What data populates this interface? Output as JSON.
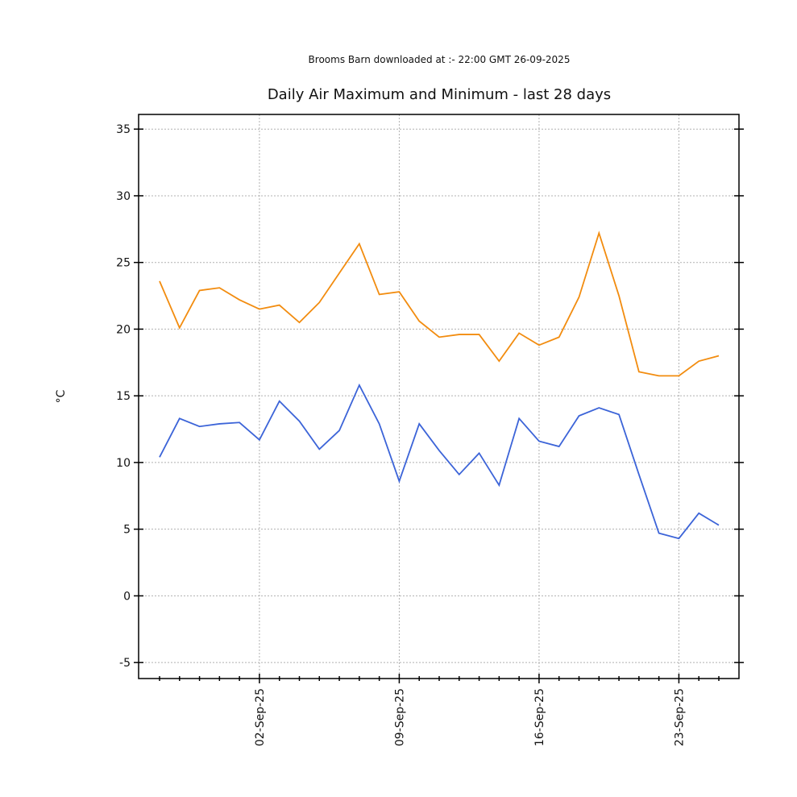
{
  "chart_data": {
    "type": "line",
    "subtitle": "Brooms Barn downloaded at :- 22:00 GMT 26-09-2025",
    "title": "Daily Air Maximum and Minimum - last 28 days",
    "y_label": "°C",
    "categories": [
      null,
      null,
      null,
      null,
      null,
      "02-Sep-25",
      null,
      null,
      null,
      null,
      null,
      null,
      "09-Sep-25",
      null,
      null,
      null,
      null,
      null,
      null,
      "16-Sep-25",
      null,
      null,
      null,
      null,
      null,
      null,
      "23-Sep-25",
      null,
      null
    ],
    "series": [
      {
        "name": "Maximum",
        "color": "#f28c0f",
        "values": [
          23.6,
          20.1,
          22.9,
          23.1,
          22.2,
          21.5,
          21.8,
          20.5,
          22.0,
          24.2,
          26.4,
          22.6,
          22.8,
          20.6,
          19.4,
          19.6,
          19.6,
          17.6,
          19.7,
          18.8,
          19.4,
          22.4,
          27.2,
          22.5,
          16.8,
          16.5,
          16.5,
          17.6,
          18.0
        ]
      },
      {
        "name": "Minimum",
        "color": "#3c64d8",
        "values": [
          10.4,
          13.3,
          12.7,
          12.9,
          13.0,
          11.7,
          14.6,
          13.1,
          11.0,
          12.4,
          15.8,
          12.9,
          8.6,
          12.9,
          10.9,
          9.1,
          10.7,
          8.3,
          13.3,
          11.6,
          11.2,
          13.5,
          14.1,
          13.6,
          9.1,
          4.7,
          4.3,
          6.2,
          5.3
        ]
      }
    ],
    "ylim": [
      -6.2,
      36.1
    ],
    "yticks": [
      -5,
      0,
      5,
      10,
      15,
      20,
      25,
      30,
      35
    ],
    "grid": true
  }
}
